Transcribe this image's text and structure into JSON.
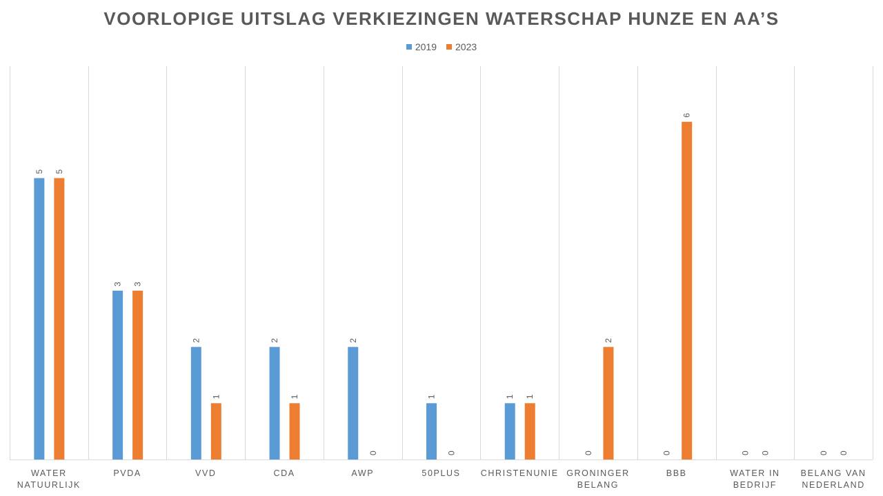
{
  "chart_data": {
    "type": "bar",
    "title": "VOORLOPIGE UITSLAG VERKIEZINGEN WATERSCHAP HUNZE EN AA’S",
    "categories": [
      [
        "WATER",
        "NATUURLIJK"
      ],
      [
        "PVDA"
      ],
      [
        "VVD"
      ],
      [
        "CDA"
      ],
      [
        "AWP"
      ],
      [
        "50PLUS"
      ],
      [
        "CHRISTENUNIE"
      ],
      [
        "GRONINGER",
        "BELANG"
      ],
      [
        "BBB"
      ],
      [
        "WATER IN",
        "BEDRIJF"
      ],
      [
        "BELANG VAN",
        "NEDERLAND"
      ]
    ],
    "series": [
      {
        "name": "2019",
        "color": "#5B9BD5",
        "values": [
          5,
          3,
          2,
          2,
          2,
          1,
          1,
          0,
          0,
          0,
          0
        ]
      },
      {
        "name": "2023",
        "color": "#ED7D31",
        "values": [
          5,
          3,
          1,
          1,
          0,
          0,
          1,
          2,
          6,
          0,
          0
        ]
      }
    ],
    "ylim": [
      0,
      7
    ],
    "grid": "vertical separators",
    "legend": "top-center",
    "data_labels": true
  }
}
